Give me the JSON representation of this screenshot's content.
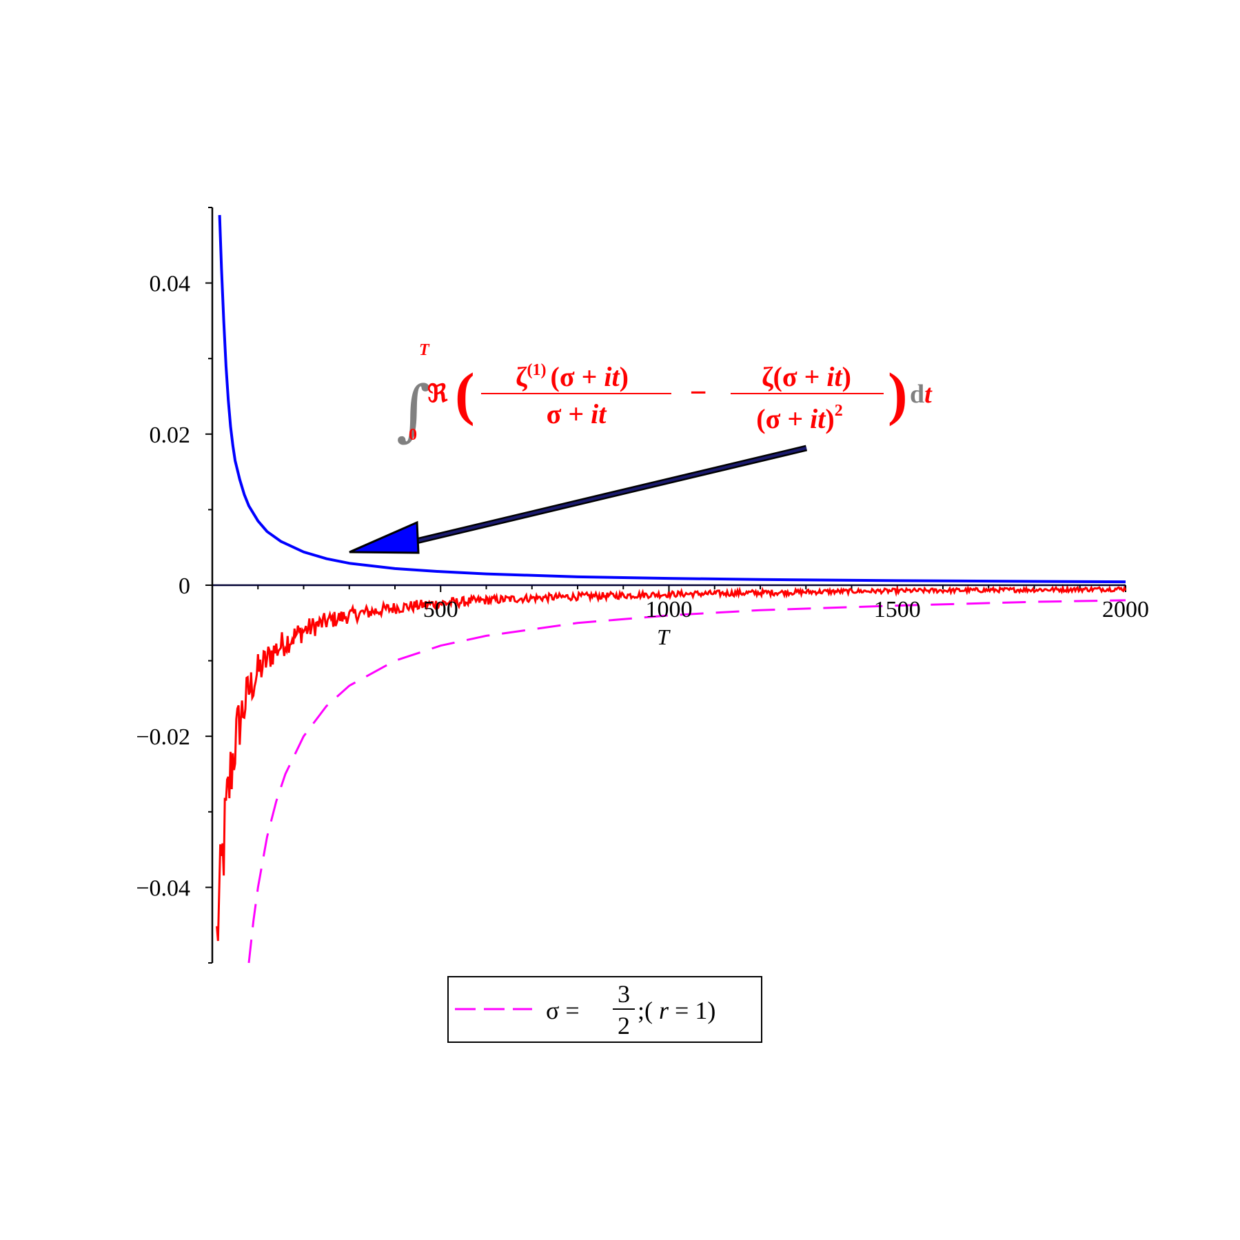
{
  "chart_data": {
    "type": "line",
    "xlabel": "T",
    "ylabel": "",
    "xlim": [
      0,
      2000
    ],
    "ylim": [
      -0.05,
      0.05
    ],
    "x_ticks": [
      500,
      1000,
      1500,
      2000
    ],
    "x_tick_labels": [
      "500",
      "1000",
      "1500",
      "2000"
    ],
    "y_ticks": [
      -0.04,
      -0.02,
      0,
      0.02,
      0.04
    ],
    "y_tick_labels": [
      "−0.04",
      "−0.02",
      "0",
      "0.02",
      "0.04"
    ],
    "grid": false,
    "legend_placement": "bottom-center",
    "series": [
      {
        "name": "",
        "style": "solid",
        "color": "#0000ff",
        "x": [
          16,
          20,
          25,
          30,
          35,
          40,
          45,
          50,
          60,
          70,
          80,
          100,
          120,
          150,
          200,
          250,
          300,
          400,
          500,
          600,
          800,
          1000,
          1200,
          1500,
          1800,
          2000
        ],
        "y": [
          0.049,
          0.042,
          0.035,
          0.029,
          0.0245,
          0.021,
          0.0185,
          0.0165,
          0.014,
          0.012,
          0.0105,
          0.0085,
          0.0071,
          0.0058,
          0.0044,
          0.0035,
          0.0029,
          0.0022,
          0.0018,
          0.0015,
          0.0011,
          0.0009,
          0.00075,
          0.0006,
          0.0005,
          0.00045
        ]
      },
      {
        "name": "",
        "style": "solid-oscillating",
        "color": "#ff0000",
        "x": [
          10,
          20,
          30,
          40,
          50,
          60,
          80,
          100,
          130,
          160,
          200,
          250,
          300,
          400,
          500,
          600,
          700,
          800,
          1000,
          1200,
          1400,
          1600,
          1800,
          2000
        ],
        "y": [
          -0.047,
          -0.038,
          -0.031,
          -0.025,
          -0.021,
          -0.018,
          -0.014,
          -0.0115,
          -0.009,
          -0.0075,
          -0.006,
          -0.0048,
          -0.004,
          -0.003,
          -0.0024,
          -0.002,
          -0.0017,
          -0.0015,
          -0.0012,
          -0.001,
          -0.0008,
          -0.0007,
          -0.0006,
          -0.0005
        ],
        "amplitude": [
          0.006,
          0.006,
          0.006,
          0.005,
          0.0045,
          0.004,
          0.003,
          0.0025,
          0.002,
          0.0018,
          0.0015,
          0.0012,
          0.001,
          0.0008,
          0.0007,
          0.0006,
          0.0005,
          0.0005,
          0.0004,
          0.0004,
          0.0003,
          0.0003,
          0.0003,
          0.0003
        ]
      },
      {
        "name": "σ = 3/2 ;( r = 1)",
        "style": "dashed",
        "color": "#ff00ff",
        "x": [
          80,
          90,
          100,
          120,
          140,
          160,
          200,
          250,
          300,
          400,
          500,
          600,
          800,
          1000,
          1200,
          1500,
          1800,
          2000
        ],
        "y": [
          -0.05,
          -0.0445,
          -0.04,
          -0.0333,
          -0.0286,
          -0.025,
          -0.02,
          -0.016,
          -0.0133,
          -0.01,
          -0.008,
          -0.0067,
          -0.005,
          -0.004,
          -0.0033,
          -0.0027,
          -0.0022,
          -0.002
        ]
      }
    ],
    "annotation": {
      "text_color": "#ff0000",
      "arrow_fill": "#0000ff",
      "integral_sign": "∫",
      "upper_limit": "T",
      "lower_limit": "0",
      "real_part": "ℜ",
      "open_paren": "(",
      "close_paren": ")",
      "num1_zeta": "ζ",
      "num1_superscript": "(1)",
      "num1_rest": "(σ + ",
      "num1_it": "it",
      "num1_close": ")",
      "den1": "σ + ",
      "den1_it": "it",
      "minus": "−",
      "num2": "ζ(σ + ",
      "num2_it": "it",
      "num2_close": ")",
      "den2": "(σ + ",
      "den2_it": "it",
      "den2_close": ")",
      "den2_power": "2",
      "differential_d": "d",
      "differential_var": "t"
    },
    "legend": {
      "line_color": "#ff00ff",
      "sigma_part": "σ = ",
      "frac_num": "3",
      "frac_den": "2",
      "after_frac": ";( ",
      "r_var": "r",
      "r_eq": " = 1)"
    }
  }
}
